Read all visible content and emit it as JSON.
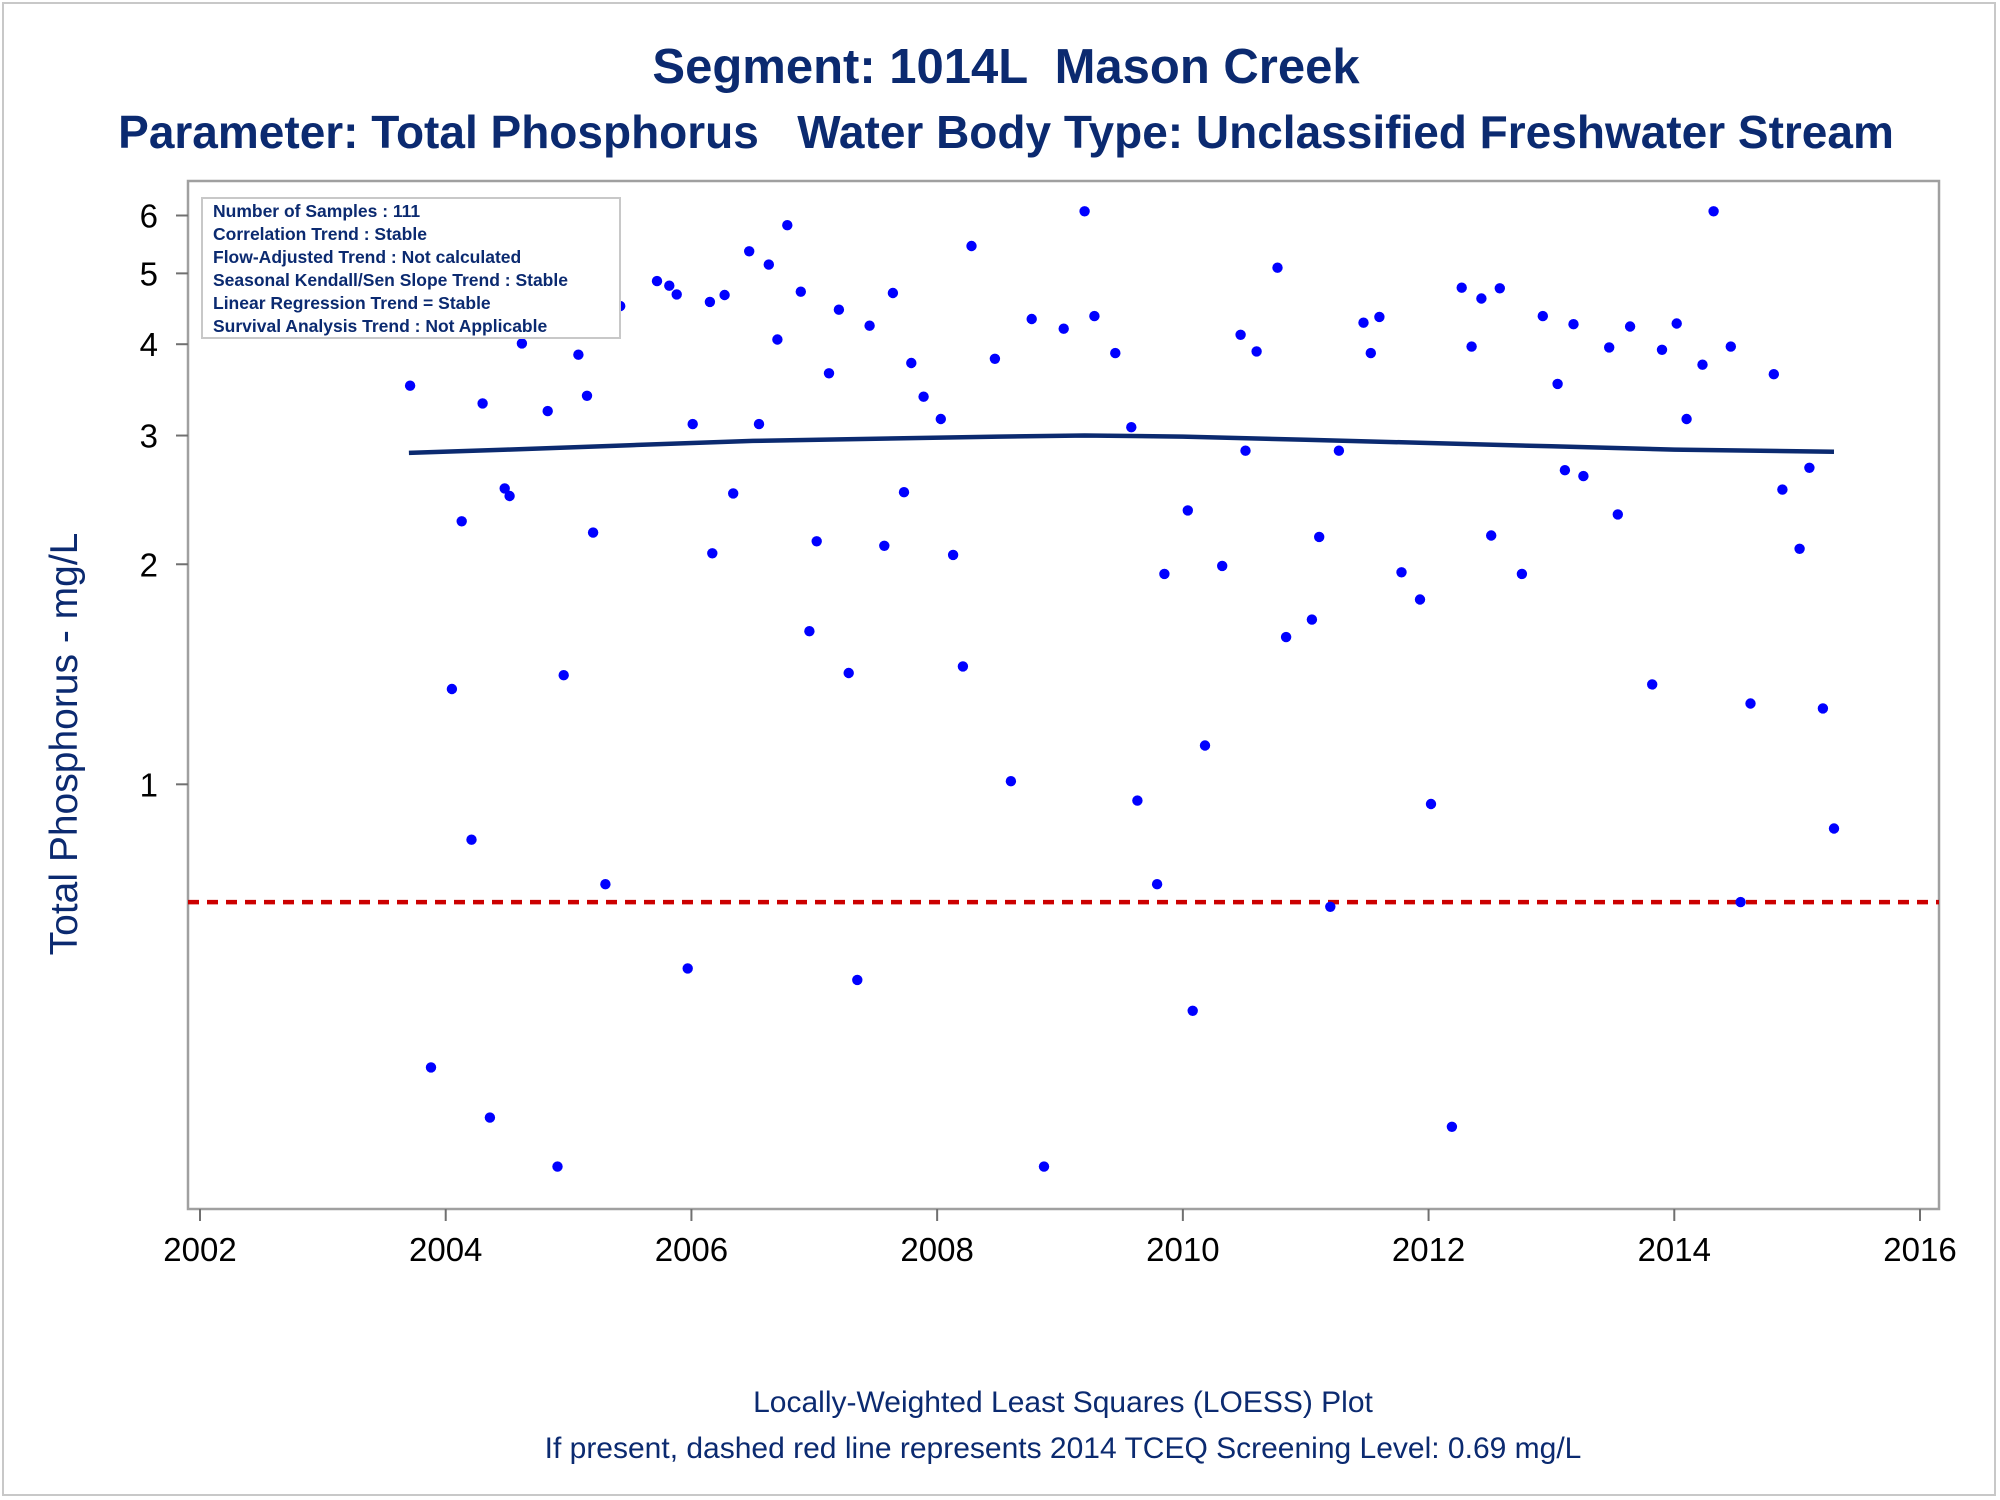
{
  "chart_data": {
    "type": "scatter",
    "title": "Segment: 1014L  Mason Creek",
    "subtitle": "Parameter: Total Phosphorus   Water Body Type: Unclassified Freshwater Stream",
    "ylabel": "Total Phosphorus - mg/L",
    "yscale": "log",
    "xlim": [
      2002,
      2016
    ],
    "ylim": [
      0.27,
      6.3
    ],
    "x_ticks": [
      2002,
      2004,
      2006,
      2008,
      2010,
      2012,
      2014,
      2016
    ],
    "y_ticks": [
      1,
      2,
      3,
      4,
      5,
      6
    ],
    "info_box": [
      "Number of Samples : 111",
      "Correlation Trend : Stable",
      "Flow-Adjusted Trend : Not calculated",
      "Seasonal Kendall/Sen Slope Trend : Stable",
      "Linear Regression Trend = Stable",
      "Survival Analysis Trend : Not Applicable"
    ],
    "footnotes": [
      "Locally-Weighted Least Squares (LOESS) Plot",
      "If present, dashed red line represents 2014 TCEQ Screening Level: 0.69 mg/L"
    ],
    "screening_level": 0.69,
    "colors": {
      "points": "#0000ff",
      "loess": "#0b2a70",
      "screening": "#cc0000",
      "text": "#0b2a70"
    },
    "loess": [
      {
        "x": 2003.7,
        "y": 2.84
      },
      {
        "x": 2004.5,
        "y": 2.87
      },
      {
        "x": 2005.5,
        "y": 2.91
      },
      {
        "x": 2006.5,
        "y": 2.95
      },
      {
        "x": 2007.5,
        "y": 2.97
      },
      {
        "x": 2008.5,
        "y": 2.99
      },
      {
        "x": 2009.2,
        "y": 3.0
      },
      {
        "x": 2010.0,
        "y": 2.99
      },
      {
        "x": 2011.0,
        "y": 2.96
      },
      {
        "x": 2012.0,
        "y": 2.93
      },
      {
        "x": 2013.0,
        "y": 2.9
      },
      {
        "x": 2014.0,
        "y": 2.87
      },
      {
        "x": 2015.3,
        "y": 2.85
      }
    ],
    "points": [
      {
        "x": 2003.71,
        "y": 3.51
      },
      {
        "x": 2003.88,
        "y": 0.41
      },
      {
        "x": 2004.05,
        "y": 1.35
      },
      {
        "x": 2004.13,
        "y": 2.29
      },
      {
        "x": 2004.21,
        "y": 0.84
      },
      {
        "x": 2004.3,
        "y": 3.32
      },
      {
        "x": 2004.36,
        "y": 0.35
      },
      {
        "x": 2004.48,
        "y": 2.54
      },
      {
        "x": 2004.52,
        "y": 2.48
      },
      {
        "x": 2004.62,
        "y": 4.01
      },
      {
        "x": 2004.78,
        "y": 4.47
      },
      {
        "x": 2004.83,
        "y": 3.24
      },
      {
        "x": 2004.91,
        "y": 0.3
      },
      {
        "x": 2004.96,
        "y": 1.41
      },
      {
        "x": 2005.08,
        "y": 3.87
      },
      {
        "x": 2005.15,
        "y": 3.4
      },
      {
        "x": 2005.2,
        "y": 2.21
      },
      {
        "x": 2005.3,
        "y": 0.73
      },
      {
        "x": 2005.42,
        "y": 4.51
      },
      {
        "x": 2005.72,
        "y": 4.88
      },
      {
        "x": 2005.82,
        "y": 4.81
      },
      {
        "x": 2005.88,
        "y": 4.68
      },
      {
        "x": 2005.97,
        "y": 0.56
      },
      {
        "x": 2006.01,
        "y": 3.11
      },
      {
        "x": 2006.15,
        "y": 4.57
      },
      {
        "x": 2006.17,
        "y": 2.07
      },
      {
        "x": 2006.27,
        "y": 4.67
      },
      {
        "x": 2006.34,
        "y": 2.5
      },
      {
        "x": 2006.47,
        "y": 5.36
      },
      {
        "x": 2006.55,
        "y": 3.11
      },
      {
        "x": 2006.63,
        "y": 5.14
      },
      {
        "x": 2006.7,
        "y": 4.06
      },
      {
        "x": 2006.78,
        "y": 5.82
      },
      {
        "x": 2006.89,
        "y": 4.72
      },
      {
        "x": 2006.96,
        "y": 1.62
      },
      {
        "x": 2007.02,
        "y": 2.15
      },
      {
        "x": 2007.12,
        "y": 3.65
      },
      {
        "x": 2007.2,
        "y": 4.46
      },
      {
        "x": 2007.28,
        "y": 1.42
      },
      {
        "x": 2007.35,
        "y": 0.54
      },
      {
        "x": 2007.45,
        "y": 4.24
      },
      {
        "x": 2007.57,
        "y": 2.12
      },
      {
        "x": 2007.64,
        "y": 4.7
      },
      {
        "x": 2007.73,
        "y": 2.51
      },
      {
        "x": 2007.79,
        "y": 3.77
      },
      {
        "x": 2007.89,
        "y": 3.39
      },
      {
        "x": 2008.03,
        "y": 3.16
      },
      {
        "x": 2008.13,
        "y": 2.06
      },
      {
        "x": 2008.21,
        "y": 1.45
      },
      {
        "x": 2008.28,
        "y": 5.45
      },
      {
        "x": 2008.47,
        "y": 3.82
      },
      {
        "x": 2008.6,
        "y": 1.01
      },
      {
        "x": 2008.77,
        "y": 4.33
      },
      {
        "x": 2008.87,
        "y": 0.3
      },
      {
        "x": 2009.03,
        "y": 4.2
      },
      {
        "x": 2009.2,
        "y": 6.08
      },
      {
        "x": 2009.28,
        "y": 4.37
      },
      {
        "x": 2009.45,
        "y": 3.89
      },
      {
        "x": 2009.58,
        "y": 3.08
      },
      {
        "x": 2009.63,
        "y": 0.95
      },
      {
        "x": 2009.79,
        "y": 0.73
      },
      {
        "x": 2009.85,
        "y": 1.94
      },
      {
        "x": 2010.04,
        "y": 2.37
      },
      {
        "x": 2010.08,
        "y": 0.49
      },
      {
        "x": 2010.18,
        "y": 1.13
      },
      {
        "x": 2010.32,
        "y": 1.99
      },
      {
        "x": 2010.47,
        "y": 4.12
      },
      {
        "x": 2010.51,
        "y": 2.86
      },
      {
        "x": 2010.6,
        "y": 3.91
      },
      {
        "x": 2010.77,
        "y": 5.09
      },
      {
        "x": 2010.84,
        "y": 1.59
      },
      {
        "x": 2011.05,
        "y": 1.68
      },
      {
        "x": 2011.11,
        "y": 2.18
      },
      {
        "x": 2011.2,
        "y": 0.68
      },
      {
        "x": 2011.27,
        "y": 2.86
      },
      {
        "x": 2011.47,
        "y": 4.28
      },
      {
        "x": 2011.53,
        "y": 3.89
      },
      {
        "x": 2011.6,
        "y": 4.36
      },
      {
        "x": 2011.78,
        "y": 1.95
      },
      {
        "x": 2011.93,
        "y": 1.79
      },
      {
        "x": 2012.02,
        "y": 0.94
      },
      {
        "x": 2012.19,
        "y": 0.34
      },
      {
        "x": 2012.27,
        "y": 4.78
      },
      {
        "x": 2012.35,
        "y": 3.97
      },
      {
        "x": 2012.43,
        "y": 4.62
      },
      {
        "x": 2012.51,
        "y": 2.19
      },
      {
        "x": 2012.58,
        "y": 4.77
      },
      {
        "x": 2012.76,
        "y": 1.94
      },
      {
        "x": 2012.93,
        "y": 4.37
      },
      {
        "x": 2013.05,
        "y": 3.53
      },
      {
        "x": 2013.11,
        "y": 2.69
      },
      {
        "x": 2013.18,
        "y": 4.26
      },
      {
        "x": 2013.26,
        "y": 2.64
      },
      {
        "x": 2013.47,
        "y": 3.96
      },
      {
        "x": 2013.54,
        "y": 2.34
      },
      {
        "x": 2013.64,
        "y": 4.23
      },
      {
        "x": 2013.82,
        "y": 1.37
      },
      {
        "x": 2013.9,
        "y": 3.93
      },
      {
        "x": 2014.02,
        "y": 4.27
      },
      {
        "x": 2014.1,
        "y": 3.16
      },
      {
        "x": 2014.23,
        "y": 3.75
      },
      {
        "x": 2014.32,
        "y": 6.08
      },
      {
        "x": 2014.46,
        "y": 3.97
      },
      {
        "x": 2014.54,
        "y": 0.69
      },
      {
        "x": 2014.62,
        "y": 1.29
      },
      {
        "x": 2014.81,
        "y": 3.64
      },
      {
        "x": 2014.88,
        "y": 2.53
      },
      {
        "x": 2015.02,
        "y": 2.1
      },
      {
        "x": 2015.1,
        "y": 2.71
      },
      {
        "x": 2015.21,
        "y": 1.27
      },
      {
        "x": 2015.3,
        "y": 0.87
      }
    ]
  }
}
